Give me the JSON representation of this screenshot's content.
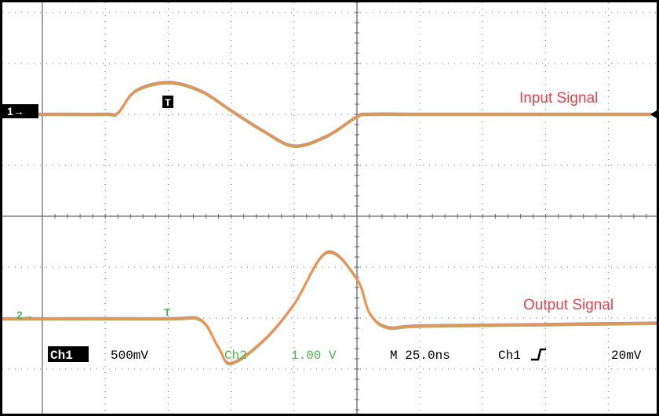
{
  "colors": {
    "trace": "#f5904a",
    "trace_noise_1": "#6aa8e8",
    "trace_noise_2": "#8cc060",
    "ch2_label": "#49b84c",
    "annotation": "#e8424a",
    "grid": "#666666",
    "marker_bg": "#000000"
  },
  "markers": {
    "ch1_ground": "1→",
    "ch2_ground": "2→",
    "trigger_top": "T",
    "trigger_bottom": "T"
  },
  "annotations": {
    "input": "Input Signal",
    "output": "Output Signal"
  },
  "readout": {
    "ch1_label": "Ch1",
    "ch1_scale": "500mV",
    "ch2_label": "Ch2",
    "ch2_scale": "1.00 V",
    "timebase": "M 25.0ns",
    "trigger_source": "Ch1",
    "trigger_slope_icon": "rising-edge-icon",
    "trigger_level": "20mV"
  },
  "chart_data": {
    "type": "line",
    "grid": true,
    "series": [
      {
        "name": "Input Signal",
        "channel": 1,
        "t": [
          -175,
          -125,
          -100,
          -95,
          -88,
          -75,
          -62,
          -50,
          -37,
          -25,
          -12,
          0,
          5,
          25,
          75,
          125,
          200
        ],
        "v": [
          0,
          0,
          0,
          0.02,
          0.38,
          0.52,
          0.38,
          0.06,
          -0.28,
          -0.52,
          -0.36,
          -0.04,
          0,
          0,
          0,
          0,
          0
        ]
      },
      {
        "name": "Output Signal",
        "channel": 2,
        "t": [
          -175,
          -125,
          -75,
          -62,
          -55,
          -50,
          -37,
          -25,
          -12,
          0,
          5,
          12,
          25,
          75,
          125,
          200
        ],
        "v": [
          0,
          0,
          0,
          -0.02,
          -0.4,
          -0.62,
          -0.3,
          0.2,
          0.92,
          0.55,
          0.08,
          -0.12,
          -0.1,
          -0.08,
          -0.06,
          -0.05
        ]
      }
    ]
  }
}
